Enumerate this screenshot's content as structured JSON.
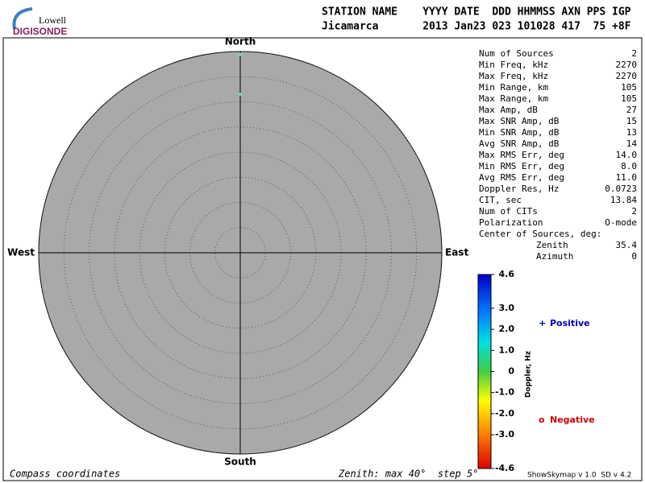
{
  "logo": {
    "top": "Lowell",
    "bottom": "DIGISONDE"
  },
  "header": {
    "columns": "STATION NAME    YYYY DATE  DDD HHMMSS AXN PPS IGP",
    "values": "Jicamarca       2013 Jan23 023 101028 417  75 +8F"
  },
  "stats": [
    {
      "label": "Num of Sources",
      "value": "2"
    },
    {
      "label": "Min Freq, kHz",
      "value": "2270"
    },
    {
      "label": "Max Freq, kHz",
      "value": "2270"
    },
    {
      "label": "Min Range, km",
      "value": "105"
    },
    {
      "label": "Max Range, km",
      "value": "105"
    },
    {
      "label": "Max Amp, dB",
      "value": "27"
    },
    {
      "label": "Max SNR Amp, dB",
      "value": "15"
    },
    {
      "label": "Min SNR Amp, dB",
      "value": "13"
    },
    {
      "label": "Avg SNR Amp, dB",
      "value": "14"
    },
    {
      "label": "Max RMS Err, deg",
      "value": "14.0"
    },
    {
      "label": "Min RMS Err, deg",
      "value": "8.0"
    },
    {
      "label": "Avg RMS Err, deg",
      "value": "11.0"
    },
    {
      "label": "Doppler Res, Hz",
      "value": "0.0723"
    },
    {
      "label": "CIT, sec",
      "value": "13.84"
    },
    {
      "label": "Num of CITs",
      "value": "2"
    },
    {
      "label": "Polarization",
      "value": "O-mode"
    }
  ],
  "center": {
    "title": "Center of Sources, deg:",
    "rows": [
      {
        "label": "Zenith",
        "value": "35.4"
      },
      {
        "label": "Azimuth",
        "value": "0"
      }
    ]
  },
  "chart_data": {
    "type": "polar-scatter",
    "directions": {
      "north": "North",
      "south": "South",
      "west": "West",
      "east": "East"
    },
    "rlim": [
      0,
      40
    ],
    "rticks": [
      5,
      10,
      15,
      20,
      25,
      30,
      35,
      40
    ],
    "grid": true,
    "points": {
      "zenith": [
        39.4,
        31.5
      ],
      "azimuth": [
        0,
        0
      ],
      "color": "#66ffcc"
    },
    "series": [
      {
        "name": "Positive",
        "symbol": "+",
        "color": "#0000c0"
      },
      {
        "name": "Negative",
        "symbol": "o",
        "color": "#d00000"
      }
    ]
  },
  "colorbar": {
    "title": "Doppler, Hz",
    "lim": [
      -4.6,
      4.6
    ],
    "ticks": [
      4.6,
      {
        "value": 3,
        "label": "3.0"
      },
      {
        "value": 2,
        "label": "2.0"
      },
      {
        "value": 1,
        "label": "1.0"
      },
      0,
      {
        "value": -1,
        "label": "-1.0"
      },
      {
        "value": -2,
        "label": "-2.0"
      },
      {
        "value": -3,
        "label": "-3.0"
      },
      -4.6
    ]
  },
  "footer": {
    "left": "Compass coordinates",
    "center": "Zenith: max 40°  step 5°",
    "right": "ShowSkymap v 1.0  SD v 4.2"
  }
}
